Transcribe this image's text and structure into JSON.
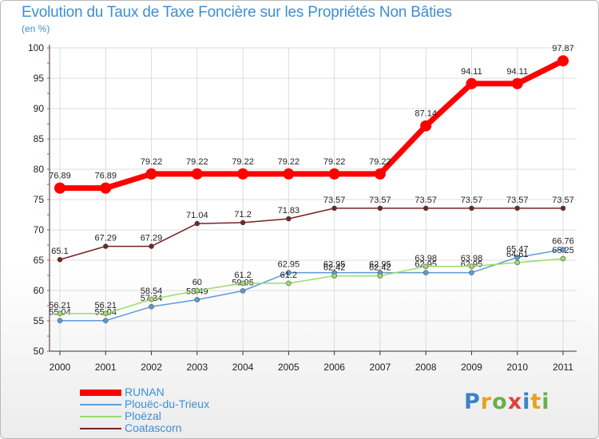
{
  "title": "Evolution du Taux de Taxe Foncière sur les Propriétés Non Bâties",
  "subtitle": "(en %)",
  "logo": {
    "text": "Proxiti",
    "letters": [
      "P",
      "r",
      "o",
      "x",
      "i",
      "t",
      "i"
    ],
    "colors": [
      "#3b82c8",
      "#e8a020",
      "#6ab04c",
      "#e04040",
      "#3b82c8",
      "#e8a020",
      "#6ab04c"
    ]
  },
  "chart_data": {
    "type": "line",
    "title": "Evolution du Taux de Taxe Foncière sur les Propriétés Non Bâties",
    "ylabel": "(en %)",
    "xlabel": "",
    "ylim": [
      50,
      100
    ],
    "yticks": [
      50,
      55,
      60,
      65,
      70,
      75,
      80,
      85,
      90,
      95,
      100
    ],
    "categories": [
      "2000",
      "2001",
      "2002",
      "2003",
      "2004",
      "2005",
      "2006",
      "2007",
      "2008",
      "2009",
      "2010",
      "2011"
    ],
    "grid": true,
    "legend_position": "bottom-left",
    "series": [
      {
        "name": "RUNAN",
        "color": "#ff0000",
        "emphasis": true,
        "values": [
          76.89,
          76.89,
          79.22,
          79.22,
          79.22,
          79.22,
          79.22,
          79.22,
          87.14,
          94.11,
          94.11,
          97.87
        ],
        "labels": [
          "76.89",
          "76.89",
          "79.22",
          "79.22",
          "79.22",
          "79.22",
          "79.22",
          "79.22",
          "87.14",
          "94.11",
          "94.11",
          "97.87"
        ]
      },
      {
        "name": "Plouëc-du-Trieux",
        "color": "#5b9bd5",
        "values": [
          55.04,
          55.04,
          57.34,
          58.49,
          59.95,
          62.95,
          62.95,
          62.95,
          62.95,
          62.95,
          65.47,
          66.76
        ],
        "labels": [
          "55.04",
          "55.04",
          "57.34",
          "58.49",
          "59.95",
          "62.95",
          "62.95",
          "62.95",
          "62.95",
          "62.95",
          "65.47",
          "66.76"
        ]
      },
      {
        "name": "Ploëzal",
        "color": "#99dd66",
        "values": [
          56.21,
          56.21,
          58.54,
          60,
          61.2,
          61.2,
          62.42,
          62.42,
          63.98,
          63.98,
          64.61,
          65.25
        ],
        "labels": [
          "56.21",
          "56.21",
          "58.54",
          "60",
          "61.2",
          "61.2",
          "62.42",
          "62.42",
          "63.98",
          "63.98",
          "64.61",
          "65.25"
        ]
      },
      {
        "name": "Coatascorn",
        "color": "#772222",
        "values": [
          65.1,
          67.29,
          67.29,
          71.04,
          71.2,
          71.83,
          73.57,
          73.57,
          73.57,
          73.57,
          73.57,
          73.57
        ],
        "labels": [
          "65.1",
          "67.29",
          "67.29",
          "71.04",
          "71.2",
          "71.83",
          "73.57",
          "73.57",
          "73.57",
          "73.57",
          "73.57",
          "73.57"
        ]
      }
    ]
  }
}
